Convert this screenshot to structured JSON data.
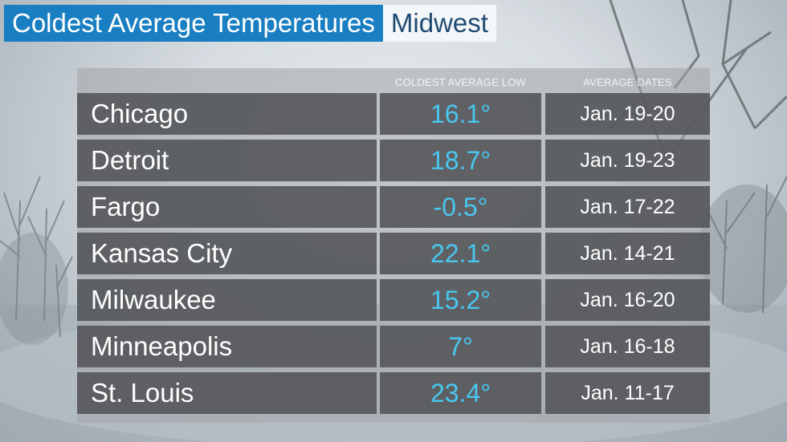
{
  "title": {
    "main": "Coldest Average Temperatures",
    "region": "Midwest"
  },
  "table": {
    "headers": {
      "coldest_low": "COLDEST AVERAGE LOW",
      "dates": "AVERAGE DATES"
    },
    "rows": [
      {
        "city": "Chicago",
        "low": "16.1°",
        "dates": "Jan. 19-20"
      },
      {
        "city": "Detroit",
        "low": "18.7°",
        "dates": "Jan. 19-23"
      },
      {
        "city": "Fargo",
        "low": "-0.5°",
        "dates": "Jan. 17-22"
      },
      {
        "city": "Kansas City",
        "low": "22.1°",
        "dates": "Jan. 14-21"
      },
      {
        "city": "Milwaukee",
        "low": "15.2°",
        "dates": "Jan. 16-20"
      },
      {
        "city": "Minneapolis",
        "low": "7°",
        "dates": "Jan. 16-18"
      },
      {
        "city": "St. Louis",
        "low": "23.4°",
        "dates": "Jan. 11-17"
      }
    ]
  },
  "colors": {
    "title_bg": "#1a7fc2",
    "region_text": "#1f4a72",
    "temp_text": "#49c7f0",
    "cell_bg": "#54565a"
  }
}
